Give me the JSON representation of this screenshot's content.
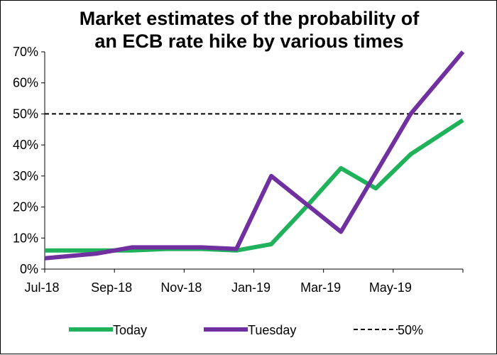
{
  "chart_data": {
    "type": "line",
    "title_line1": "Market estimates of the probability of",
    "title_line2": "an ECB rate hike by various times",
    "x": [
      "Jul-18",
      "Aug-18",
      "Sep-18",
      "Oct-18",
      "Nov-18",
      "Dec-18",
      "Jan-19",
      "Feb-19",
      "Mar-19",
      "Apr-19",
      "May-19",
      "Jun-19"
    ],
    "x_tick_labels": [
      "Jul-18",
      "Sep-18",
      "Nov-18",
      "Jan-19",
      "Mar-19",
      "May-19"
    ],
    "y_tick_labels": [
      "0%",
      "10%",
      "20%",
      "30%",
      "40%",
      "50%",
      "60%",
      "70%"
    ],
    "ylim": [
      0,
      70
    ],
    "series": [
      {
        "name": "Today",
        "color": "#1fb25a",
        "values": [
          6,
          6,
          6,
          6.5,
          6.5,
          6,
          8,
          20,
          32.5,
          26,
          37,
          48
        ]
      },
      {
        "name": "Tuesday",
        "color": "#7030a0",
        "values": [
          3.5,
          5,
          7,
          7,
          7,
          6.5,
          30,
          21,
          12,
          31,
          50,
          70
        ]
      }
    ],
    "reference_line": {
      "name": "50%",
      "value": 50,
      "color": "#000000",
      "style": "dashed"
    },
    "grid": false,
    "legend_position": "bottom"
  }
}
